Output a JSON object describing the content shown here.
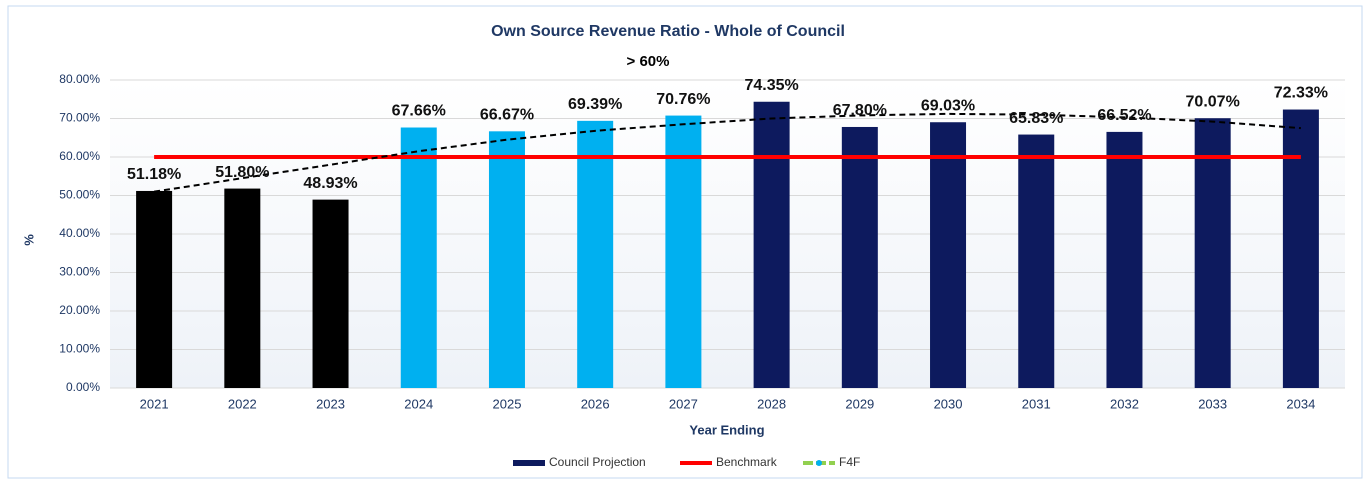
{
  "chart_data": {
    "type": "bar",
    "title": "Own Source Revenue Ratio - Whole of Council",
    "annotation": "> 60%",
    "x_label": "Year Ending",
    "y_label": "%",
    "categories": [
      "2021",
      "2022",
      "2023",
      "2024",
      "2025",
      "2026",
      "2027",
      "2028",
      "2029",
      "2030",
      "2031",
      "2032",
      "2033",
      "2034"
    ],
    "series": [
      {
        "name": "Council Projection",
        "color": "#0d1a5e",
        "values": [
          51.18,
          51.8,
          48.93,
          67.66,
          66.67,
          69.39,
          70.76,
          74.35,
          67.8,
          69.03,
          65.83,
          66.52,
          70.07,
          72.33
        ],
        "value_labels": [
          "51.18%",
          "51.80%",
          "48.93%",
          "67.66%",
          "66.67%",
          "69.39%",
          "70.76%",
          "74.35%",
          "67.80%",
          "69.03%",
          "65.83%",
          "66.52%",
          "70.07%",
          "72.33%"
        ],
        "colors": [
          "#000000",
          "#000000",
          "#000000",
          "#00b0f0",
          "#00b0f0",
          "#00b0f0",
          "#00b0f0",
          "#0d1a5e",
          "#0d1a5e",
          "#0d1a5e",
          "#0d1a5e",
          "#0d1a5e",
          "#0d1a5e",
          "#0d1a5e"
        ]
      },
      {
        "name": "Benchmark",
        "color": "#ff0000",
        "values": [
          60,
          60,
          60,
          60,
          60,
          60,
          60,
          60,
          60,
          60,
          60,
          60,
          60,
          60
        ]
      },
      {
        "name": "F4F",
        "color": "#92d050",
        "marker_color": "#00b0f0",
        "values": [
          null,
          null,
          null,
          null,
          null,
          null,
          null,
          null,
          null,
          null,
          null,
          null,
          null,
          null
        ]
      }
    ],
    "trendline": {
      "color": "#000000",
      "values": [
        51,
        54.5,
        58,
        61.5,
        64.5,
        66.8,
        68.5,
        70,
        70.8,
        71.2,
        71,
        70.3,
        69.2,
        67.5
      ]
    },
    "ylim": [
      0,
      80
    ],
    "yticks": [
      {
        "value": 0,
        "label": "0.00%"
      },
      {
        "value": 10,
        "label": "10.00%"
      },
      {
        "value": 20,
        "label": "20.00%"
      },
      {
        "value": 30,
        "label": "30.00%"
      },
      {
        "value": 40,
        "label": "40.00%"
      },
      {
        "value": 50,
        "label": "50.00%"
      },
      {
        "value": 60,
        "label": "60.00%"
      },
      {
        "value": 70,
        "label": "70.00%"
      },
      {
        "value": 80,
        "label": "80.00%"
      }
    ],
    "grid": true
  }
}
